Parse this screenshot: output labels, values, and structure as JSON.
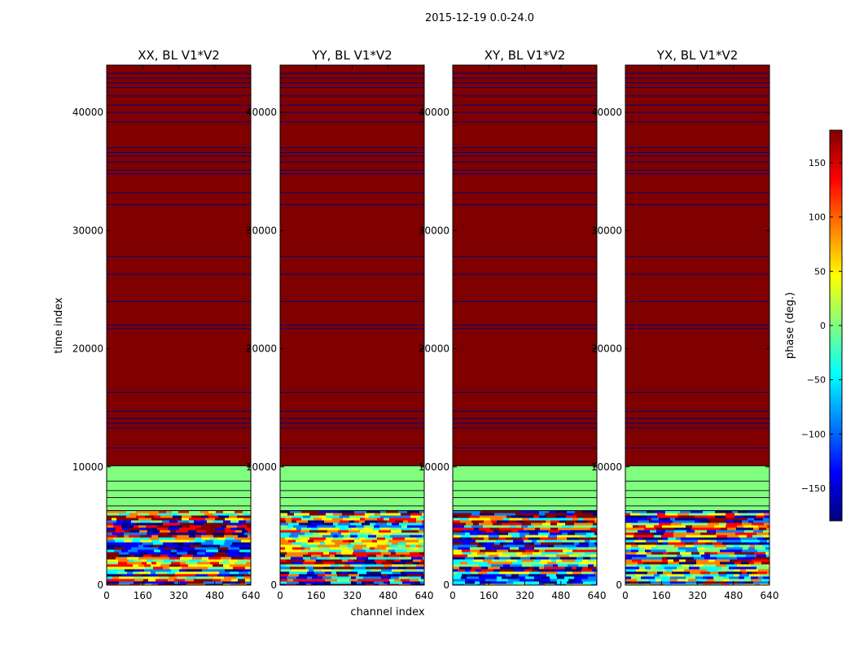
{
  "suptitle": "2015-12-19 0.0-24.0",
  "colors": {
    "high": "#800000",
    "mid": "#80ff7f",
    "line": "#00007f",
    "axis": "#000000",
    "colormap": [
      "#00007f",
      "#0000ff",
      "#0080ff",
      "#00ffff",
      "#80ff80",
      "#ffff00",
      "#ff8000",
      "#ff0000",
      "#800000"
    ]
  },
  "chart_data": {
    "type": "heatmap",
    "xlabel": "channel index",
    "ylabel": "time index",
    "xlim": [
      0,
      640
    ],
    "ylim": [
      0,
      44000
    ],
    "xticks": [
      0,
      160,
      320,
      480,
      640
    ],
    "yticks": [
      0,
      10000,
      20000,
      30000,
      40000
    ],
    "panels": [
      {
        "title": "XX, BL V1*V2"
      },
      {
        "title": "YY, BL V1*V2"
      },
      {
        "title": "XY, BL V1*V2"
      },
      {
        "title": "YX, BL V1*V2"
      }
    ],
    "regions": [
      {
        "from": 0,
        "to": 6300,
        "value": "noisy phase"
      },
      {
        "from": 6300,
        "to": 10100,
        "value": 0
      },
      {
        "from": 10100,
        "to": 44000,
        "value": 180
      }
    ],
    "flag_lines_high": [
      11600,
      13300,
      13700,
      14100,
      14700,
      16300,
      21700,
      22000,
      24000,
      26300,
      27800,
      32200,
      33200,
      34800,
      35100,
      35800,
      36300,
      36600,
      37000,
      39200,
      40000,
      40600,
      41400,
      42100,
      42500,
      42900,
      43300
    ],
    "flag_lines_mid": [
      6700,
      7400,
      8000,
      8800
    ],
    "colorbar": {
      "label": "phase (deg.)",
      "range": [
        -180,
        180
      ],
      "ticks": [
        -150,
        -100,
        -50,
        0,
        50,
        100,
        150
      ]
    }
  }
}
